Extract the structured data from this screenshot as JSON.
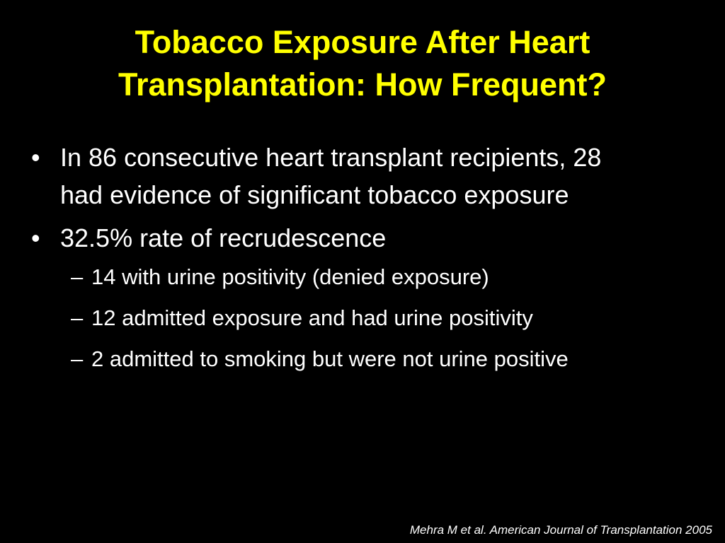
{
  "slide": {
    "title": {
      "lines": [
        "Tobacco Exposure After Heart",
        "Transplantation: How Frequent?"
      ]
    },
    "bullets": [
      {
        "text": "In 86 consecutive heart transplant recipients, 28 had evidence of significant tobacco exposure"
      },
      {
        "text": "32.5% rate of recrudescence",
        "sub_bullets": [
          "14 with urine positivity (denied exposure)",
          "12 admitted exposure and had urine positivity",
          "2 admitted to smoking but were not urine positive"
        ]
      }
    ],
    "citation": "Mehra M et al. American Journal of Transplantation 2005"
  }
}
